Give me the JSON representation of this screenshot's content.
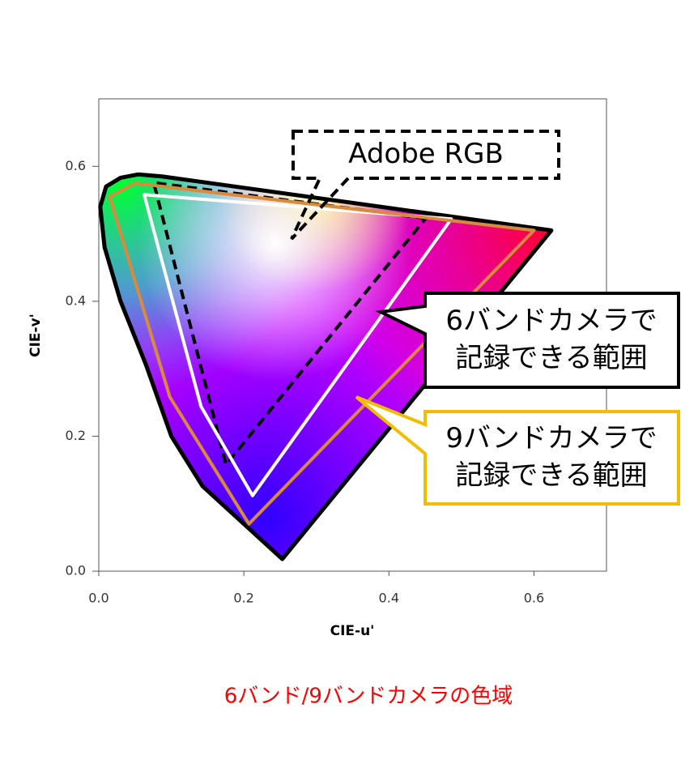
{
  "chart_data": {
    "type": "gamut",
    "xlabel": "CIE-u'",
    "ylabel": "CIE-v'",
    "caption": "6バンド/9バンドカメラの色域",
    "xlim": [
      0,
      0.7
    ],
    "ylim": [
      0,
      0.7
    ],
    "xticks": [
      {
        "value": 0,
        "label": "0.0"
      },
      0.2,
      0.4,
      0.6
    ],
    "yticks": [
      {
        "value": 0,
        "label": "0.0"
      },
      0.2,
      0.4,
      0.6
    ],
    "grid": false,
    "series": [
      {
        "color": "#000000",
        "x": [
          0.253,
          0.2,
          0.143,
          0.1,
          0.065,
          0.03,
          0.008,
          0.002,
          0.01,
          0.03,
          0.054,
          0.087,
          0.624
        ],
        "values": [
          0.018,
          0.07,
          0.126,
          0.2,
          0.306,
          0.4,
          0.48,
          0.54,
          0.57,
          0.583,
          0.588,
          0.585,
          0.505
        ]
      },
      {
        "name": "Adobe RGB",
        "color": "#000000",
        "dashed": true,
        "x": [
          0.4507,
          0.0757,
          0.1754
        ],
        "values": [
          0.5229,
          0.5757,
          0.1579
        ]
      },
      {
        "name": "6バンドカメラで\n記録できる範囲",
        "color": "#ffffff",
        "x": [
          0.0625,
          0.486,
          0.212,
          0.141
        ],
        "values": [
          0.558,
          0.522,
          0.112,
          0.244
        ]
      },
      {
        "name": "9バンドカメラで\n記録できる範囲",
        "color": "#d98a3c",
        "border": "#f2bd00",
        "x": [
          0.015,
          0.05,
          0.6,
          0.207,
          0.098
        ],
        "values": [
          0.555,
          0.575,
          0.505,
          0.07,
          0.258
        ]
      }
    ]
  }
}
